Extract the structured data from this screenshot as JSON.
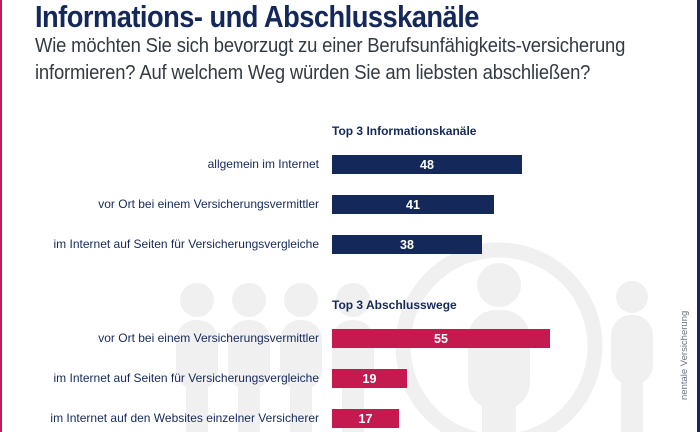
{
  "colors": {
    "navy": "#14295a",
    "pink": "#c41a4f",
    "figure": "#f0f0f1"
  },
  "header": {
    "title": "Informations- und Abschlusskanäle",
    "subtitle": "Wie möchten Sie sich bevorzugt zu einer Berufsunfähigkeits-versicherung informieren? Auf welchem Weg würden Sie am liebsten abschließen?"
  },
  "credit": "nentale Versicherung",
  "background_icons": [
    "person-icon",
    "person-icon",
    "person-icon",
    "person-icon",
    "person-in-circle-icon",
    "person-icon"
  ],
  "chart_data": {
    "type": "bar",
    "orientation": "horizontal",
    "title": "Informations- und Abschlusskanäle",
    "subtitle": "Wie möchten Sie sich bevorzugt zu einer Berufsunfähigkeits-versicherung informieren? Auf welchem Weg würden Sie am liebsten abschließen?",
    "xlim": [
      0,
      100
    ],
    "grid": false,
    "groups": [
      {
        "name": "Top 3 Informationskanäle",
        "color": "#14295a",
        "categories": [
          "allgemein im Internet",
          "vor Ort bei einem Versicherungsvermittler",
          "im Internet auf Seiten für Versicherungsvergleiche"
        ],
        "values": [
          48,
          41,
          38
        ]
      },
      {
        "name": "Top 3 Abschlusswege",
        "color": "#c41a4f",
        "categories": [
          "vor Ort bei einem Versicherungsvermittler",
          "im Internet auf Seiten für Versicherungsvergleiche",
          "im Internet auf den Websites einzelner Versicherer"
        ],
        "values": [
          55,
          19,
          17
        ]
      }
    ]
  }
}
